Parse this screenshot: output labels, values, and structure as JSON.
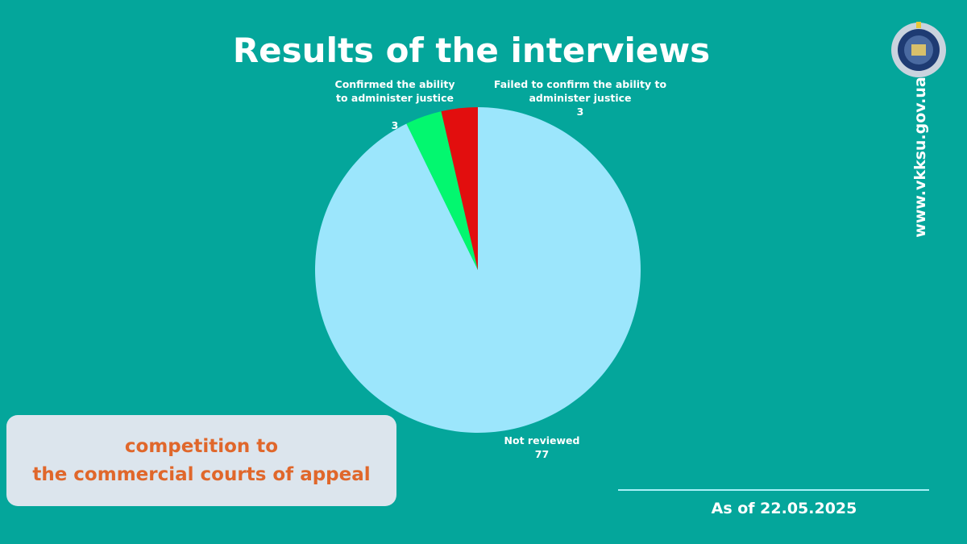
{
  "chart_data": {
    "type": "pie",
    "title": "Results of the interviews",
    "categories": [
      "Not reviewed",
      "Confirmed the ability to administer justice",
      "Failed to confirm the ability to administer justice"
    ],
    "values": [
      77,
      3,
      3
    ],
    "colors": [
      "#9ce6fc",
      "#03f76f",
      "#e20e0e"
    ]
  },
  "caption_lines": [
    "competition to",
    "the commercial courts of appeal"
  ],
  "date_note": "As of 22.05.2025",
  "website": "www.vkksu.gov.ua"
}
